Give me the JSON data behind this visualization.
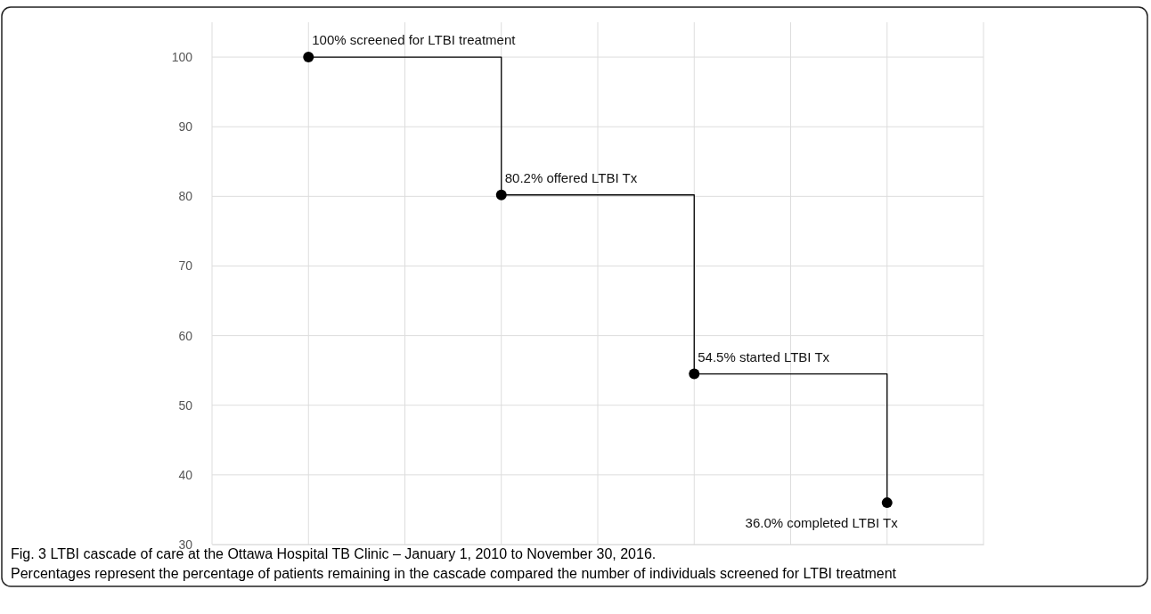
{
  "chart_data": {
    "type": "step",
    "title": "Fig. 3 LTBI cascade of care at the Ottawa Hospital TB Clinic – January 1, 2010 to November 30, 2016.",
    "annotations": [
      "Percentages represent the percentage of patients remaining in the cascade compared the number of individuals screened for LTBI treatment"
    ],
    "categories": [
      null,
      null,
      null,
      null
    ],
    "series": [
      {
        "color": "#000000",
        "values": [
          100,
          80.2,
          54.5,
          36.0
        ],
        "value_labels": [
          "100% screened for LTBI treatment",
          "80.2% offered LTBI Tx",
          "54.5% started LTBI Tx",
          "36.0% completed LTBI Tx"
        ]
      }
    ],
    "ylim": [
      30,
      105
    ],
    "yticks": [
      30,
      40,
      50,
      60,
      70,
      80,
      90,
      100
    ],
    "grid": true,
    "marker": "circle",
    "line_style": "solid",
    "legend": false
  }
}
